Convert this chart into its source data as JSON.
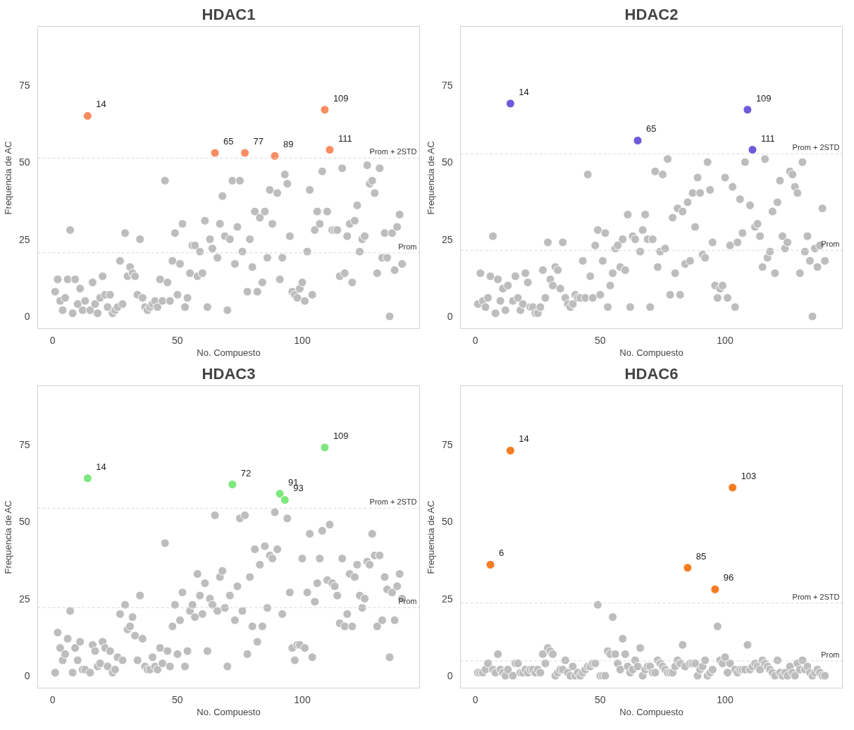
{
  "chart_data": [
    {
      "type": "scatter",
      "title": "HDAC1",
      "xlabel": "No. Compuesto",
      "ylabel": "Frequencia de AC",
      "marker": "circle",
      "xlim": [
        -6,
        147
      ],
      "ylim": [
        -4,
        94
      ],
      "xticks": [
        0,
        50,
        100
      ],
      "yticks": [
        0,
        25,
        50,
        75
      ],
      "x": [
        1,
        2,
        3,
        4,
        5,
        6,
        7,
        8,
        9,
        10,
        11,
        12,
        13,
        14,
        15,
        16,
        17,
        18,
        19,
        20,
        21,
        22,
        23,
        24,
        25,
        26,
        27,
        28,
        29,
        30,
        31,
        32,
        33,
        34,
        35,
        36,
        37,
        38,
        39,
        40,
        41,
        42,
        43,
        44,
        45,
        46,
        47,
        48,
        49,
        50,
        51,
        52,
        53,
        54,
        55,
        56,
        57,
        58,
        59,
        60,
        61,
        62,
        63,
        64,
        65,
        66,
        67,
        68,
        69,
        70,
        71,
        72,
        73,
        74,
        75,
        76,
        77,
        78,
        79,
        80,
        81,
        82,
        83,
        84,
        85,
        86,
        87,
        88,
        89,
        90,
        91,
        92,
        93,
        94,
        95,
        96,
        97,
        98,
        99,
        100,
        101,
        102,
        103,
        104,
        105,
        106,
        107,
        108,
        109,
        110,
        111,
        112,
        113,
        114,
        115,
        116,
        117,
        118,
        119,
        120,
        121,
        122,
        123,
        124,
        125,
        126,
        127,
        128,
        129,
        130,
        131,
        132,
        133,
        134,
        135,
        136,
        137,
        138,
        139,
        140
      ],
      "series": [
        {
          "color": "#bdbdbd",
          "values": [
            8,
            12,
            5,
            2,
            6,
            12,
            28,
            1,
            12,
            4,
            9,
            2,
            5,
            null,
            2,
            11,
            4,
            1,
            6,
            13,
            7,
            3,
            7,
            1,
            2,
            3,
            18,
            4,
            27,
            13,
            16,
            14,
            13,
            7,
            25,
            6,
            3,
            2,
            3,
            4,
            5,
            3,
            12,
            5,
            44,
            11,
            5,
            18,
            27,
            7,
            17,
            30,
            3,
            6,
            14,
            23,
            23,
            13,
            21,
            14,
            31,
            3,
            25,
            22,
            null,
            19,
            30,
            39,
            26,
            2,
            25,
            44,
            17,
            29,
            44,
            21,
            null,
            8,
            25,
            16,
            34,
            8,
            32,
            11,
            34,
            19,
            41,
            30,
            null,
            40,
            12,
            19,
            46,
            43,
            26,
            8,
            7,
            6,
            9,
            11,
            5,
            21,
            41,
            7,
            28,
            34,
            30,
            47,
            null,
            34,
            null,
            28,
            28,
            28,
            13,
            48,
            14,
            26,
            30,
            11,
            31,
            36,
            21,
            25,
            26,
            49,
            43,
            44,
            40,
            14,
            48,
            19,
            27,
            19,
            0,
            27,
            15,
            29,
            33,
            17
          ]
        },
        {
          "color": "#fa8c62",
          "x": [
            14,
            65,
            77,
            89,
            109,
            111
          ],
          "values": [
            65,
            53,
            53,
            52,
            67,
            54
          ]
        }
      ],
      "ref_lines": [
        {
          "axis": "y",
          "value": 20.6,
          "label": "Prom",
          "color": "#d9d9d9",
          "line_style": "dashed"
        },
        {
          "axis": "y",
          "value": 51.3,
          "label": "Prom + 2STD",
          "color": "#d9d9d9",
          "line_style": "dashed"
        }
      ],
      "annotations": [
        {
          "text": "14",
          "x": 14,
          "y": 65
        },
        {
          "text": "65",
          "x": 65,
          "y": 53
        },
        {
          "text": "77",
          "x": 77,
          "y": 53
        },
        {
          "text": "89",
          "x": 89,
          "y": 52
        },
        {
          "text": "109",
          "x": 109,
          "y": 67
        },
        {
          "text": "111",
          "x": 111,
          "y": 54
        }
      ]
    },
    {
      "type": "scatter",
      "title": "HDAC2",
      "xlabel": "No. Compuesto",
      "ylabel": "Frequencia de AC",
      "marker": "circle",
      "xlim": [
        -6,
        147
      ],
      "ylim": [
        -4,
        94
      ],
      "xticks": [
        0,
        50,
        100
      ],
      "yticks": [
        0,
        25,
        50,
        75
      ],
      "x": [
        1,
        2,
        3,
        4,
        5,
        6,
        7,
        8,
        9,
        10,
        11,
        12,
        13,
        14,
        15,
        16,
        17,
        18,
        19,
        20,
        21,
        22,
        23,
        24,
        25,
        26,
        27,
        28,
        29,
        30,
        31,
        32,
        33,
        34,
        35,
        36,
        37,
        38,
        39,
        40,
        41,
        42,
        43,
        44,
        45,
        46,
        47,
        48,
        49,
        50,
        51,
        52,
        53,
        54,
        55,
        56,
        57,
        58,
        59,
        60,
        61,
        62,
        63,
        64,
        65,
        66,
        67,
        68,
        69,
        70,
        71,
        72,
        73,
        74,
        75,
        76,
        77,
        78,
        79,
        80,
        81,
        82,
        83,
        84,
        85,
        86,
        87,
        88,
        89,
        90,
        91,
        92,
        93,
        94,
        95,
        96,
        97,
        98,
        99,
        100,
        101,
        102,
        103,
        104,
        105,
        106,
        107,
        108,
        109,
        110,
        111,
        112,
        113,
        114,
        115,
        116,
        117,
        118,
        119,
        120,
        121,
        122,
        123,
        124,
        125,
        126,
        127,
        128,
        129,
        130,
        131,
        132,
        133,
        134,
        135,
        136,
        137,
        138,
        139,
        140
      ],
      "series": [
        {
          "color": "#bdbdbd",
          "values": [
            4,
            14,
            5,
            3,
            6,
            13,
            26,
            1,
            12,
            5,
            9,
            2,
            10,
            null,
            5,
            13,
            6,
            2,
            4,
            14,
            11,
            3,
            3,
            1,
            1,
            3,
            15,
            6,
            24,
            12,
            10,
            16,
            15,
            9,
            24,
            6,
            4,
            3,
            4,
            7,
            6,
            6,
            18,
            6,
            46,
            13,
            6,
            23,
            28,
            7,
            18,
            27,
            3,
            10,
            14,
            22,
            23,
            16,
            25,
            15,
            33,
            3,
            26,
            25,
            null,
            21,
            28,
            33,
            25,
            3,
            25,
            47,
            16,
            21,
            46,
            22,
            51,
            7,
            32,
            14,
            35,
            7,
            34,
            17,
            37,
            18,
            40,
            29,
            45,
            40,
            20,
            19,
            50,
            41,
            24,
            10,
            6,
            9,
            10,
            45,
            6,
            23,
            42,
            3,
            24,
            38,
            27,
            50,
            null,
            36,
            null,
            29,
            30,
            26,
            16,
            51,
            19,
            21,
            34,
            14,
            37,
            44,
            26,
            22,
            24,
            47,
            46,
            42,
            40,
            14,
            50,
            21,
            26,
            18,
            0,
            22,
            16,
            23,
            35,
            18
          ]
        },
        {
          "color": "#6f5bd9",
          "x": [
            14,
            65,
            109,
            111
          ],
          "values": [
            69,
            57,
            67,
            54
          ]
        }
      ],
      "ref_lines": [
        {
          "axis": "y",
          "value": 21.4,
          "label": "Prom",
          "color": "#d9d9d9",
          "line_style": "dashed"
        },
        {
          "axis": "y",
          "value": 52.7,
          "label": "Prom + 2STD",
          "color": "#d9d9d9",
          "line_style": "dashed"
        }
      ],
      "annotations": [
        {
          "text": "14",
          "x": 14,
          "y": 69
        },
        {
          "text": "65",
          "x": 65,
          "y": 57
        },
        {
          "text": "109",
          "x": 109,
          "y": 67
        },
        {
          "text": "111",
          "x": 111,
          "y": 54
        }
      ]
    },
    {
      "type": "scatter",
      "title": "HDAC3",
      "xlabel": "No. Compuesto",
      "ylabel": "Frequencia de AC",
      "marker": "circle",
      "xlim": [
        -6,
        147
      ],
      "ylim": [
        -4,
        94
      ],
      "xticks": [
        0,
        50,
        100
      ],
      "yticks": [
        0,
        25,
        50,
        75
      ],
      "x": [
        1,
        2,
        3,
        4,
        5,
        6,
        7,
        8,
        9,
        10,
        11,
        12,
        13,
        14,
        15,
        16,
        17,
        18,
        19,
        20,
        21,
        22,
        23,
        24,
        25,
        26,
        27,
        28,
        29,
        30,
        31,
        32,
        33,
        34,
        35,
        36,
        37,
        38,
        39,
        40,
        41,
        42,
        43,
        44,
        45,
        46,
        47,
        48,
        49,
        50,
        51,
        52,
        53,
        54,
        55,
        56,
        57,
        58,
        59,
        60,
        61,
        62,
        63,
        64,
        65,
        66,
        67,
        68,
        69,
        70,
        71,
        72,
        73,
        74,
        75,
        76,
        77,
        78,
        79,
        80,
        81,
        82,
        83,
        84,
        85,
        86,
        87,
        88,
        89,
        90,
        91,
        92,
        93,
        94,
        95,
        96,
        97,
        98,
        99,
        100,
        101,
        102,
        103,
        104,
        105,
        106,
        107,
        108,
        109,
        110,
        111,
        112,
        113,
        114,
        115,
        116,
        117,
        118,
        119,
        120,
        121,
        122,
        123,
        124,
        125,
        126,
        127,
        128,
        129,
        130,
        131,
        132,
        133,
        134,
        135,
        136,
        137,
        138,
        139,
        140
      ],
      "series": [
        {
          "color": "#bdbdbd",
          "values": [
            1,
            14,
            9,
            5,
            7,
            12,
            21,
            1,
            9,
            5,
            11,
            2,
            2,
            null,
            1,
            10,
            8,
            3,
            4,
            11,
            9,
            3,
            8,
            1,
            2,
            6,
            20,
            5,
            23,
            15,
            16,
            19,
            13,
            5,
            26,
            12,
            3,
            2,
            2,
            6,
            3,
            2,
            9,
            4,
            43,
            8,
            3,
            16,
            23,
            7,
            18,
            27,
            3,
            8,
            21,
            23,
            19,
            33,
            26,
            20,
            30,
            8,
            25,
            23,
            52,
            21,
            32,
            34,
            22,
            3,
            26,
            null,
            18,
            29,
            51,
            21,
            52,
            7,
            32,
            16,
            41,
            11,
            36,
            16,
            42,
            22,
            39,
            38,
            53,
            41,
            null,
            20,
            null,
            51,
            27,
            9,
            5,
            10,
            10,
            38,
            9,
            27,
            46,
            6,
            24,
            30,
            38,
            47,
            null,
            31,
            49,
            30,
            29,
            26,
            17,
            38,
            16,
            20,
            33,
            16,
            32,
            36,
            26,
            22,
            25,
            37,
            36,
            46,
            39,
            16,
            39,
            18,
            32,
            28,
            6,
            27,
            18,
            29,
            33,
            25
          ]
        },
        {
          "color": "#7ee87e",
          "x": [
            14,
            72,
            91,
            93,
            109
          ],
          "values": [
            64,
            62,
            59,
            57,
            74
          ]
        }
      ],
      "ref_lines": [
        {
          "axis": "y",
          "value": 22.1,
          "label": "Prom",
          "color": "#d9d9d9",
          "line_style": "dashed"
        },
        {
          "axis": "y",
          "value": 54.3,
          "label": "Prom + 2STD",
          "color": "#d9d9d9",
          "line_style": "dashed"
        }
      ],
      "annotations": [
        {
          "text": "14",
          "x": 14,
          "y": 64
        },
        {
          "text": "72",
          "x": 72,
          "y": 62
        },
        {
          "text": "91",
          "x": 91,
          "y": 59
        },
        {
          "text": "93",
          "x": 93,
          "y": 57
        },
        {
          "text": "109",
          "x": 109,
          "y": 74
        }
      ]
    },
    {
      "type": "scatter",
      "title": "HDAC6",
      "xlabel": "No. Compuesto",
      "ylabel": "Frequencia de AC",
      "marker": "circle",
      "xlim": [
        -6,
        147
      ],
      "ylim": [
        -4,
        94
      ],
      "xticks": [
        0,
        50,
        100
      ],
      "yticks": [
        0,
        25,
        50,
        75
      ],
      "x": [
        1,
        2,
        3,
        4,
        5,
        6,
        7,
        8,
        9,
        10,
        11,
        12,
        13,
        14,
        15,
        16,
        17,
        18,
        19,
        20,
        21,
        22,
        23,
        24,
        25,
        26,
        27,
        28,
        29,
        30,
        31,
        32,
        33,
        34,
        35,
        36,
        37,
        38,
        39,
        40,
        41,
        42,
        43,
        44,
        45,
        46,
        47,
        48,
        49,
        50,
        51,
        52,
        53,
        54,
        55,
        56,
        57,
        58,
        59,
        60,
        61,
        62,
        63,
        64,
        65,
        66,
        67,
        68,
        69,
        70,
        71,
        72,
        73,
        74,
        75,
        76,
        77,
        78,
        79,
        80,
        81,
        82,
        83,
        84,
        85,
        86,
        87,
        88,
        89,
        90,
        91,
        92,
        93,
        94,
        95,
        96,
        97,
        98,
        99,
        100,
        101,
        102,
        103,
        104,
        105,
        106,
        107,
        108,
        109,
        110,
        111,
        112,
        113,
        114,
        115,
        116,
        117,
        118,
        119,
        120,
        121,
        122,
        123,
        124,
        125,
        126,
        127,
        128,
        129,
        130,
        131,
        132,
        133,
        134,
        135,
        136,
        137,
        138,
        139,
        140
      ],
      "series": [
        {
          "color": "#bdbdbd",
          "values": [
            1,
            1,
            1,
            2,
            4,
            null,
            2,
            1,
            7,
            2,
            1,
            0,
            2,
            null,
            0,
            4,
            4,
            1,
            1,
            2,
            1,
            2,
            2,
            1,
            2,
            1,
            7,
            4,
            9,
            8,
            7,
            0,
            1,
            2,
            2,
            5,
            1,
            0,
            3,
            0,
            1,
            0,
            1,
            2,
            3,
            3,
            4,
            4,
            23,
            0,
            0,
            0,
            8,
            7,
            19,
            7,
            4,
            2,
            12,
            7,
            3,
            1,
            2,
            5,
            3,
            9,
            0,
            2,
            3,
            3,
            1,
            1,
            5,
            4,
            3,
            2,
            1,
            1,
            1,
            3,
            5,
            4,
            10,
            3,
            null,
            4,
            4,
            4,
            0,
            2,
            3,
            5,
            0,
            1,
            2,
            null,
            16,
            5,
            4,
            6,
            1,
            4,
            null,
            2,
            1,
            2,
            2,
            2,
            10,
            2,
            3,
            4,
            3,
            2,
            5,
            4,
            3,
            2,
            1,
            0,
            5,
            1,
            0,
            1,
            0,
            3,
            1,
            0,
            4,
            2,
            5,
            2,
            3,
            1,
            0,
            1,
            2,
            1,
            0,
            0
          ]
        },
        {
          "color": "#f67c21",
          "x": [
            6,
            14,
            85,
            96,
            103
          ],
          "values": [
            36,
            73,
            35,
            28,
            61
          ]
        }
      ],
      "ref_lines": [
        {
          "axis": "y",
          "value": 4.8,
          "label": "Prom",
          "color": "#d9d9d9",
          "line_style": "dashed"
        },
        {
          "axis": "y",
          "value": 23.6,
          "label": "Prom + 2STD",
          "color": "#d9d9d9",
          "line_style": "dashed"
        }
      ],
      "annotations": [
        {
          "text": "6",
          "x": 6,
          "y": 36
        },
        {
          "text": "14",
          "x": 14,
          "y": 73
        },
        {
          "text": "85",
          "x": 85,
          "y": 35
        },
        {
          "text": "96",
          "x": 96,
          "y": 28
        },
        {
          "text": "103",
          "x": 103,
          "y": 61
        }
      ]
    }
  ]
}
